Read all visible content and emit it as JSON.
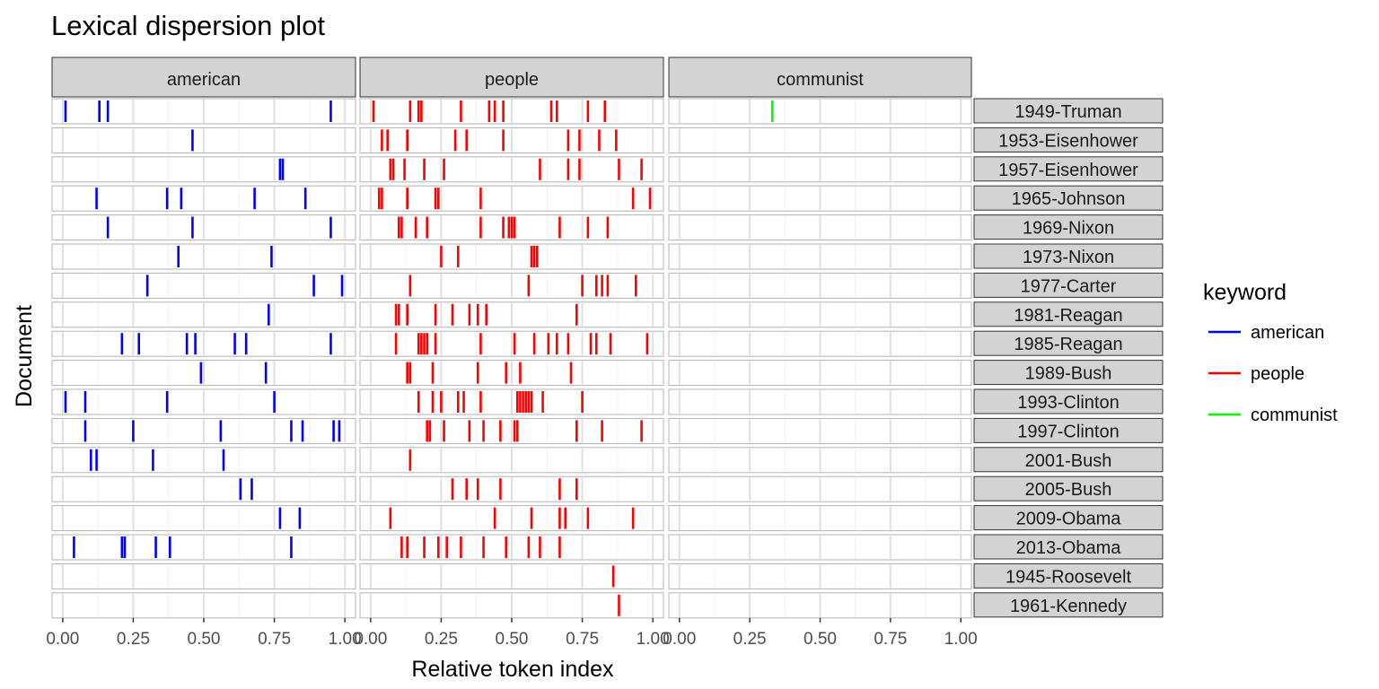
{
  "chart_data": {
    "type": "scatter",
    "title": "Lexical dispersion plot",
    "xlabel": "Relative token index",
    "ylabel": "Document",
    "xlim": [
      0,
      1
    ],
    "x_ticks": [
      "0.00",
      "0.25",
      "0.50",
      "0.75",
      "1.00"
    ],
    "grid": true,
    "legend_title": "keyword",
    "legend_position": "right",
    "facets": [
      "american",
      "people",
      "communist"
    ],
    "documents": [
      "1949-Truman",
      "1953-Eisenhower",
      "1957-Eisenhower",
      "1965-Johnson",
      "1969-Nixon",
      "1973-Nixon",
      "1977-Carter",
      "1981-Reagan",
      "1985-Reagan",
      "1989-Bush",
      "1993-Clinton",
      "1997-Clinton",
      "2001-Bush",
      "2005-Bush",
      "2009-Obama",
      "2013-Obama",
      "1945-Roosevelt",
      "1961-Kennedy"
    ],
    "series": [
      {
        "name": "american",
        "color": "#0000FF",
        "positions": [
          [
            0.01,
            0.13,
            0.16,
            0.95
          ],
          [
            0.46
          ],
          [
            0.77,
            0.78
          ],
          [
            0.12,
            0.37,
            0.42,
            0.68,
            0.86
          ],
          [
            0.16,
            0.46,
            0.95
          ],
          [
            0.41,
            0.74
          ],
          [
            0.3,
            0.89,
            0.99
          ],
          [
            0.73
          ],
          [
            0.21,
            0.27,
            0.44,
            0.47,
            0.61,
            0.65,
            0.95
          ],
          [
            0.49,
            0.72
          ],
          [
            0.01,
            0.08,
            0.37,
            0.75
          ],
          [
            0.08,
            0.25,
            0.56,
            0.81,
            0.85,
            0.96,
            0.98
          ],
          [
            0.1,
            0.12,
            0.32,
            0.57
          ],
          [
            0.63,
            0.67
          ],
          [
            0.77,
            0.84
          ],
          [
            0.04,
            0.21,
            0.22,
            0.33,
            0.38,
            0.81
          ],
          [],
          []
        ]
      },
      {
        "name": "people",
        "color": "#FF0000",
        "positions": [
          [
            0.01,
            0.14,
            0.17,
            0.18,
            0.32,
            0.42,
            0.44,
            0.47,
            0.64,
            0.66,
            0.77,
            0.83
          ],
          [
            0.04,
            0.06,
            0.13,
            0.3,
            0.34,
            0.47,
            0.7,
            0.74,
            0.81,
            0.87
          ],
          [
            0.07,
            0.08,
            0.12,
            0.19,
            0.26,
            0.6,
            0.7,
            0.74,
            0.88,
            0.96
          ],
          [
            0.03,
            0.04,
            0.13,
            0.23,
            0.24,
            0.39,
            0.93,
            0.99
          ],
          [
            0.1,
            0.11,
            0.16,
            0.2,
            0.39,
            0.47,
            0.49,
            0.5,
            0.51,
            0.67,
            0.77,
            0.84
          ],
          [
            0.25,
            0.31,
            0.57,
            0.58,
            0.59
          ],
          [
            0.14,
            0.56,
            0.75,
            0.8,
            0.82,
            0.84,
            0.94
          ],
          [
            0.09,
            0.1,
            0.13,
            0.23,
            0.29,
            0.35,
            0.38,
            0.41,
            0.73
          ],
          [
            0.09,
            0.17,
            0.18,
            0.19,
            0.2,
            0.23,
            0.39,
            0.51,
            0.58,
            0.63,
            0.66,
            0.7,
            0.78,
            0.8,
            0.85,
            0.98
          ],
          [
            0.13,
            0.14,
            0.22,
            0.38,
            0.48,
            0.53,
            0.71
          ],
          [
            0.17,
            0.22,
            0.25,
            0.31,
            0.33,
            0.39,
            0.52,
            0.53,
            0.54,
            0.55,
            0.56,
            0.57,
            0.61,
            0.75
          ],
          [
            0.2,
            0.21,
            0.26,
            0.35,
            0.4,
            0.46,
            0.51,
            0.52,
            0.73,
            0.82,
            0.96
          ],
          [
            0.14
          ],
          [
            0.29,
            0.34,
            0.38,
            0.46,
            0.67,
            0.73
          ],
          [
            0.07,
            0.44,
            0.57,
            0.67,
            0.69,
            0.77,
            0.93
          ],
          [
            0.11,
            0.13,
            0.19,
            0.24,
            0.27,
            0.32,
            0.4,
            0.48,
            0.56,
            0.6,
            0.67
          ],
          [
            0.86
          ],
          [
            0.88
          ]
        ]
      },
      {
        "name": "communist",
        "color": "#00FF00",
        "positions": [
          [
            0.33
          ],
          [],
          [],
          [],
          [],
          [],
          [],
          [],
          [],
          [],
          [],
          [],
          [],
          [],
          [],
          [],
          [],
          []
        ]
      }
    ]
  }
}
